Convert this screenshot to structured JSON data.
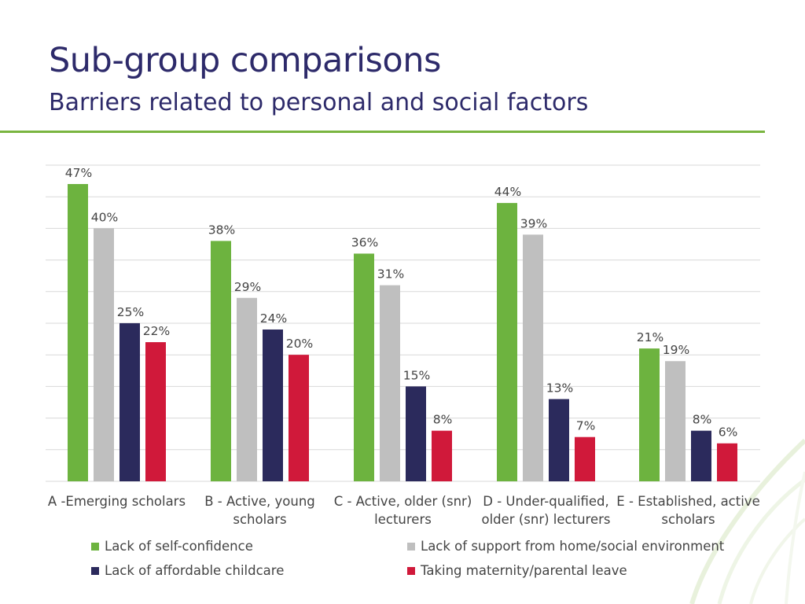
{
  "slide": {
    "title": "Sub-group comparisons",
    "subtitle": "Barriers related to personal and social factors"
  },
  "colors": {
    "title": "#2d2a6a",
    "rule": "#7ab540",
    "grid": "#d9d9d9",
    "label": "#444444"
  },
  "chart_data": {
    "type": "bar",
    "title": "",
    "xlabel": "",
    "ylabel": "",
    "ylim": [
      0,
      47
    ],
    "grid": true,
    "legend_position": "bottom",
    "value_suffix": "%",
    "categories": [
      [
        "A -Emerging scholars"
      ],
      [
        "B - Active, young",
        "scholars"
      ],
      [
        "C - Active, older (snr)",
        "lecturers"
      ],
      [
        "D - Under-qualified,",
        "older (snr) lecturers"
      ],
      [
        "E - Established, active",
        "scholars"
      ]
    ],
    "series": [
      {
        "name": "Lack of self-confidence",
        "color": "#6db33f",
        "values": [
          47,
          38,
          36,
          44,
          21
        ]
      },
      {
        "name": "Lack of support from home/social environment",
        "color": "#bfbfbf",
        "values": [
          40,
          29,
          31,
          39,
          19
        ]
      },
      {
        "name": "Lack of affordable childcare",
        "color": "#2b2a5c",
        "values": [
          25,
          24,
          15,
          13,
          8
        ]
      },
      {
        "name": "Taking maternity/parental leave",
        "color": "#d0193a",
        "values": [
          22,
          20,
          8,
          7,
          6
        ]
      }
    ]
  }
}
